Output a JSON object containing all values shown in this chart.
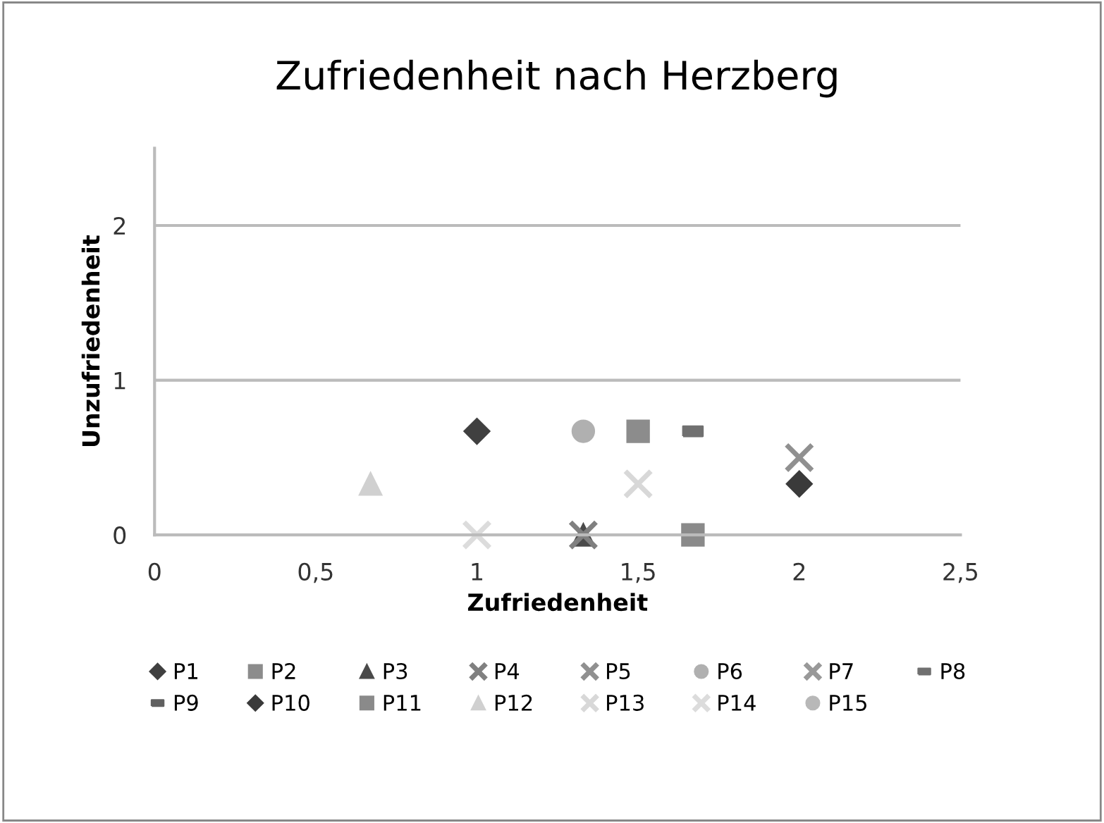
{
  "chart_data": {
    "type": "scatter",
    "title": "Zufriedenheit nach Herzberg",
    "xlabel": "Zufriedenheit",
    "ylabel": "Unzufriedenheit",
    "xlim": [
      0,
      2.5
    ],
    "xticks": [
      0,
      {
        "value": 0.5,
        "label": "0,5"
      },
      1,
      {
        "value": 1.5,
        "label": "1,5"
      },
      2,
      {
        "value": 2.5,
        "label": "2,5"
      }
    ],
    "ylim": [
      0,
      2.5
    ],
    "yticks": [
      0,
      1,
      2
    ],
    "grid": "y",
    "legend": "bottom",
    "series": [
      {
        "name": "P1",
        "color": "#404040",
        "marker": "diamond",
        "x": [
          1
        ],
        "values": [
          0.67
        ]
      },
      {
        "name": "P2",
        "color": "#8c8c8c",
        "marker": "square",
        "x": [
          1.5
        ],
        "values": [
          0.67
        ]
      },
      {
        "name": "P3",
        "color": "#4a4a4a",
        "marker": "triangle",
        "x": [
          1.33
        ],
        "values": [
          0
        ]
      },
      {
        "name": "P4",
        "color": "#808080",
        "marker": "cross",
        "x": [
          1.33
        ],
        "values": [
          0
        ]
      },
      {
        "name": "P5",
        "color": "#909090",
        "marker": "cross",
        "x": [
          2
        ],
        "values": [
          0.5
        ]
      },
      {
        "name": "P6",
        "color": "#b0b0b0",
        "marker": "circle",
        "x": [
          1.33
        ],
        "values": [
          0.67
        ]
      },
      {
        "name": "P7",
        "color": "#999999",
        "marker": "cross",
        "x": [
          null
        ],
        "values": [
          null
        ]
      },
      {
        "name": "P8",
        "color": "#707070",
        "x": [
          1.67
        ],
        "values": [
          0.67
        ]
      },
      {
        "name": "P9",
        "color": "#606060",
        "x": [
          null
        ],
        "values": [
          null
        ]
      },
      {
        "name": "P10",
        "color": "#3a3a3a",
        "marker": "diamond",
        "x": [
          2
        ],
        "values": [
          0.33
        ]
      },
      {
        "name": "P11",
        "color": "#8a8a8a",
        "marker": "square",
        "x": [
          1.67
        ],
        "values": [
          0
        ]
      },
      {
        "name": "P12",
        "color": "#d0d0d0",
        "marker": "triangle",
        "x": [
          0.67
        ],
        "values": [
          0.33
        ]
      },
      {
        "name": "P13",
        "color": "#d8d8d8",
        "marker": "cross",
        "x": [
          1.5
        ],
        "values": [
          0.33
        ]
      },
      {
        "name": "P14",
        "color": "#dcdcdc",
        "marker": "cross",
        "x": [
          1
        ],
        "values": [
          0
        ]
      },
      {
        "name": "P15",
        "color": "#b8b8b8",
        "marker": "circle",
        "x": [
          null
        ],
        "values": [
          null
        ]
      }
    ]
  }
}
